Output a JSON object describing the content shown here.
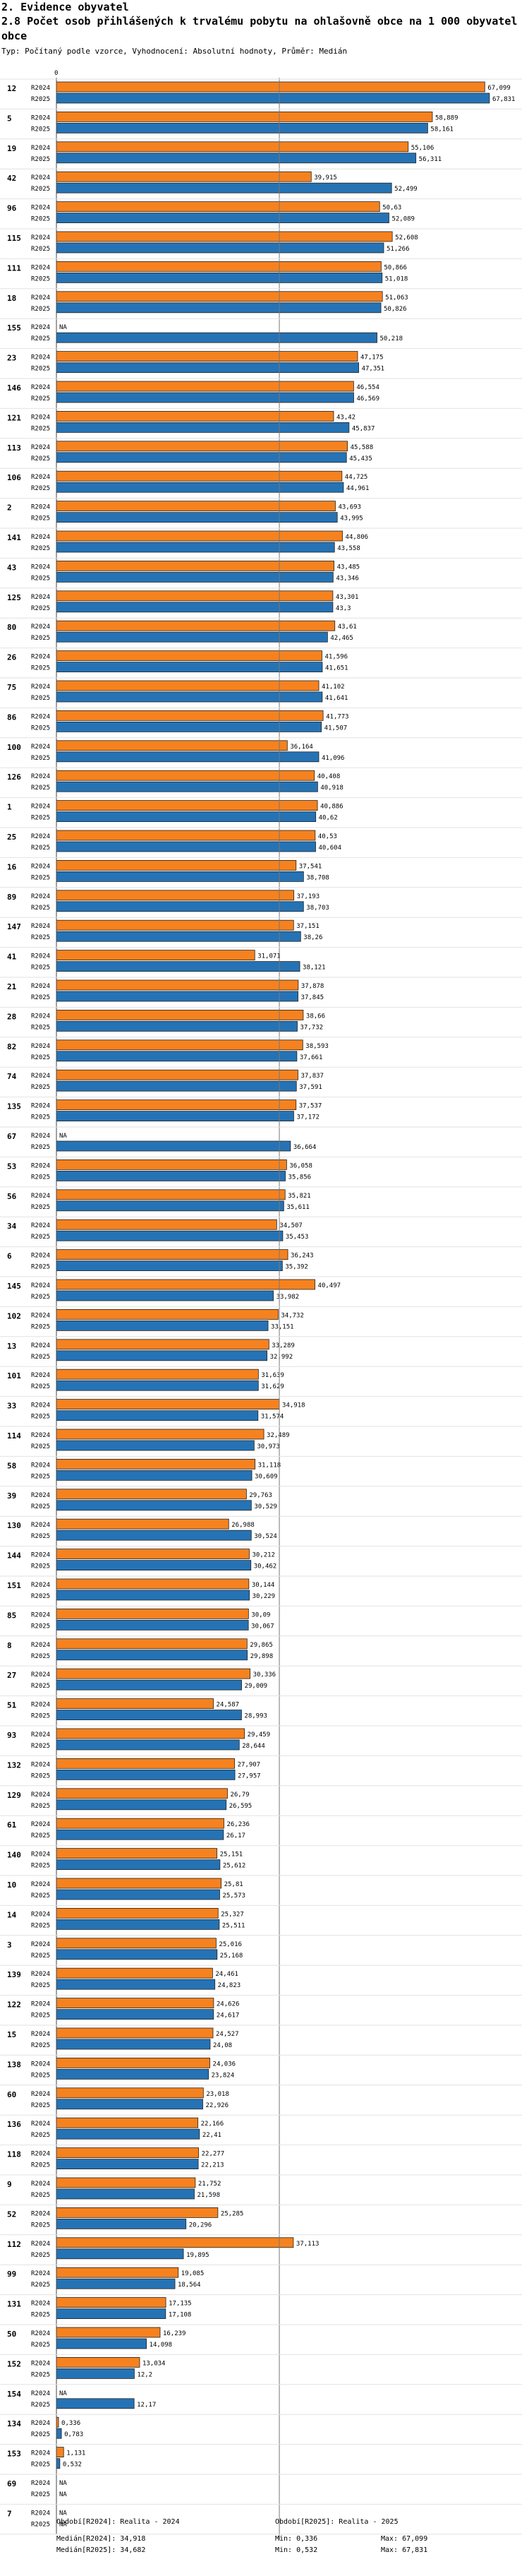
{
  "section_title": "2. Evidence obyvatel",
  "chart_title": "2.8 Počet osob přihlášených k trvalému pobytu na ohlašovně obce na 1 000 obyvatel obce",
  "parameters": "Typ: Počítaný podle vzorce, Vyhodnocení: Absolutní hodnoty, Průměr: Medián",
  "colors": {
    "r2024": "#F5821F",
    "r2025": "#2573B5"
  },
  "chart_data": {
    "type": "bar",
    "orientation": "horizontal",
    "axis_zero_label": "0",
    "xlim": [
      0,
      68.5
    ],
    "series_names": [
      "R2024",
      "R2025"
    ],
    "na_label": "NA",
    "median_values": [
      34.918,
      34.682
    ],
    "entries": [
      {
        "id": "12",
        "values": [
          67.099,
          67.831
        ],
        "labels": [
          "67,099",
          "67,831"
        ]
      },
      {
        "id": "5",
        "values": [
          58.889,
          58.161
        ],
        "labels": [
          "58,889",
          "58,161"
        ]
      },
      {
        "id": "19",
        "values": [
          55.106,
          56.311
        ],
        "labels": [
          "55,106",
          "56,311"
        ]
      },
      {
        "id": "42",
        "values": [
          39.915,
          52.499
        ],
        "labels": [
          "39,915",
          "52,499"
        ]
      },
      {
        "id": "96",
        "values": [
          50.63,
          52.089
        ],
        "labels": [
          "50,63",
          "52,089"
        ]
      },
      {
        "id": "115",
        "values": [
          52.608,
          51.266
        ],
        "labels": [
          "52,608",
          "51,266"
        ]
      },
      {
        "id": "111",
        "values": [
          50.866,
          51.018
        ],
        "labels": [
          "50,866",
          "51,018"
        ]
      },
      {
        "id": "18",
        "values": [
          51.063,
          50.826
        ],
        "labels": [
          "51,063",
          "50,826"
        ]
      },
      {
        "id": "155",
        "values": [
          null,
          50.218
        ],
        "labels": [
          "NA",
          "50,218"
        ]
      },
      {
        "id": "23",
        "values": [
          47.175,
          47.351
        ],
        "labels": [
          "47,175",
          "47,351"
        ]
      },
      {
        "id": "146",
        "values": [
          46.554,
          46.569
        ],
        "labels": [
          "46,554",
          "46,569"
        ]
      },
      {
        "id": "121",
        "values": [
          43.42,
          45.837
        ],
        "labels": [
          "43,42",
          "45,837"
        ]
      },
      {
        "id": "113",
        "values": [
          45.588,
          45.435
        ],
        "labels": [
          "45,588",
          "45,435"
        ]
      },
      {
        "id": "106",
        "values": [
          44.725,
          44.961
        ],
        "labels": [
          "44,725",
          "44,961"
        ]
      },
      {
        "id": "2",
        "values": [
          43.693,
          43.995
        ],
        "labels": [
          "43,693",
          "43,995"
        ]
      },
      {
        "id": "141",
        "values": [
          44.806,
          43.558
        ],
        "labels": [
          "44,806",
          "43,558"
        ]
      },
      {
        "id": "43",
        "values": [
          43.485,
          43.346
        ],
        "labels": [
          "43,485",
          "43,346"
        ]
      },
      {
        "id": "125",
        "values": [
          43.301,
          43.3
        ],
        "labels": [
          "43,301",
          "43,3"
        ]
      },
      {
        "id": "80",
        "values": [
          43.61,
          42.465
        ],
        "labels": [
          "43,61",
          "42,465"
        ]
      },
      {
        "id": "26",
        "values": [
          41.596,
          41.651
        ],
        "labels": [
          "41,596",
          "41,651"
        ]
      },
      {
        "id": "75",
        "values": [
          41.102,
          41.641
        ],
        "labels": [
          "41,102",
          "41,641"
        ]
      },
      {
        "id": "86",
        "values": [
          41.773,
          41.507
        ],
        "labels": [
          "41,773",
          "41,507"
        ]
      },
      {
        "id": "100",
        "values": [
          36.164,
          41.096
        ],
        "labels": [
          "36,164",
          "41,096"
        ]
      },
      {
        "id": "126",
        "values": [
          40.408,
          40.918
        ],
        "labels": [
          "40,408",
          "40,918"
        ]
      },
      {
        "id": "1",
        "values": [
          40.886,
          40.62
        ],
        "labels": [
          "40,886",
          "40,62"
        ]
      },
      {
        "id": "25",
        "values": [
          40.53,
          40.604
        ],
        "labels": [
          "40,53",
          "40,604"
        ]
      },
      {
        "id": "16",
        "values": [
          37.541,
          38.708
        ],
        "labels": [
          "37,541",
          "38,708"
        ]
      },
      {
        "id": "89",
        "values": [
          37.193,
          38.703
        ],
        "labels": [
          "37,193",
          "38,703"
        ]
      },
      {
        "id": "147",
        "values": [
          37.151,
          38.26
        ],
        "labels": [
          "37,151",
          "38,26"
        ]
      },
      {
        "id": "41",
        "values": [
          31.071,
          38.121
        ],
        "labels": [
          "31,071",
          "38,121"
        ]
      },
      {
        "id": "21",
        "values": [
          37.878,
          37.845
        ],
        "labels": [
          "37,878",
          "37,845"
        ]
      },
      {
        "id": "28",
        "values": [
          38.66,
          37.732
        ],
        "labels": [
          "38,66",
          "37,732"
        ]
      },
      {
        "id": "82",
        "values": [
          38.593,
          37.661
        ],
        "labels": [
          "38,593",
          "37,661"
        ]
      },
      {
        "id": "74",
        "values": [
          37.837,
          37.591
        ],
        "labels": [
          "37,837",
          "37,591"
        ]
      },
      {
        "id": "135",
        "values": [
          37.537,
          37.172
        ],
        "labels": [
          "37,537",
          "37,172"
        ]
      },
      {
        "id": "67",
        "values": [
          null,
          36.664
        ],
        "labels": [
          "NA",
          "36,664"
        ]
      },
      {
        "id": "53",
        "values": [
          36.058,
          35.856
        ],
        "labels": [
          "36,058",
          "35,856"
        ]
      },
      {
        "id": "56",
        "values": [
          35.821,
          35.611
        ],
        "labels": [
          "35,821",
          "35,611"
        ]
      },
      {
        "id": "34",
        "values": [
          34.507,
          35.453
        ],
        "labels": [
          "34,507",
          "35,453"
        ]
      },
      {
        "id": "6",
        "values": [
          36.243,
          35.392
        ],
        "labels": [
          "36,243",
          "35,392"
        ]
      },
      {
        "id": "145",
        "values": [
          40.497,
          33.982
        ],
        "labels": [
          "40,497",
          "33,982"
        ]
      },
      {
        "id": "102",
        "values": [
          34.732,
          33.151
        ],
        "labels": [
          "34,732",
          "33,151"
        ]
      },
      {
        "id": "13",
        "values": [
          33.289,
          32.992
        ],
        "labels": [
          "33,289",
          "32,992"
        ]
      },
      {
        "id": "101",
        "values": [
          31.639,
          31.629
        ],
        "labels": [
          "31,639",
          "31,629"
        ]
      },
      {
        "id": "33",
        "values": [
          34.918,
          31.574
        ],
        "labels": [
          "34,918",
          "31,574"
        ]
      },
      {
        "id": "114",
        "values": [
          32.489,
          30.973
        ],
        "labels": [
          "32,489",
          "30,973"
        ]
      },
      {
        "id": "58",
        "values": [
          31.118,
          30.609
        ],
        "labels": [
          "31,118",
          "30,609"
        ]
      },
      {
        "id": "39",
        "values": [
          29.763,
          30.529
        ],
        "labels": [
          "29,763",
          "30,529"
        ]
      },
      {
        "id": "130",
        "values": [
          26.988,
          30.524
        ],
        "labels": [
          "26,988",
          "30,524"
        ]
      },
      {
        "id": "144",
        "values": [
          30.212,
          30.462
        ],
        "labels": [
          "30,212",
          "30,462"
        ]
      },
      {
        "id": "151",
        "values": [
          30.144,
          30.229
        ],
        "labels": [
          "30,144",
          "30,229"
        ]
      },
      {
        "id": "85",
        "values": [
          30.09,
          30.067
        ],
        "labels": [
          "30,09",
          "30,067"
        ]
      },
      {
        "id": "8",
        "values": [
          29.865,
          29.898
        ],
        "labels": [
          "29,865",
          "29,898"
        ]
      },
      {
        "id": "27",
        "values": [
          30.336,
          29.009
        ],
        "labels": [
          "30,336",
          "29,009"
        ]
      },
      {
        "id": "51",
        "values": [
          24.587,
          28.993
        ],
        "labels": [
          "24,587",
          "28,993"
        ]
      },
      {
        "id": "93",
        "values": [
          29.459,
          28.644
        ],
        "labels": [
          "29,459",
          "28,644"
        ]
      },
      {
        "id": "132",
        "values": [
          27.907,
          27.957
        ],
        "labels": [
          "27,907",
          "27,957"
        ]
      },
      {
        "id": "129",
        "values": [
          26.79,
          26.595
        ],
        "labels": [
          "26,79",
          "26,595"
        ]
      },
      {
        "id": "61",
        "values": [
          26.236,
          26.17
        ],
        "labels": [
          "26,236",
          "26,17"
        ]
      },
      {
        "id": "140",
        "values": [
          25.151,
          25.612
        ],
        "labels": [
          "25,151",
          "25,612"
        ]
      },
      {
        "id": "10",
        "values": [
          25.81,
          25.573
        ],
        "labels": [
          "25,81",
          "25,573"
        ]
      },
      {
        "id": "14",
        "values": [
          25.327,
          25.511
        ],
        "labels": [
          "25,327",
          "25,511"
        ]
      },
      {
        "id": "3",
        "values": [
          25.016,
          25.168
        ],
        "labels": [
          "25,016",
          "25,168"
        ]
      },
      {
        "id": "139",
        "values": [
          24.461,
          24.823
        ],
        "labels": [
          "24,461",
          "24,823"
        ]
      },
      {
        "id": "122",
        "values": [
          24.626,
          24.617
        ],
        "labels": [
          "24,626",
          "24,617"
        ]
      },
      {
        "id": "15",
        "values": [
          24.527,
          24.08
        ],
        "labels": [
          "24,527",
          "24,08"
        ]
      },
      {
        "id": "138",
        "values": [
          24.036,
          23.824
        ],
        "labels": [
          "24,036",
          "23,824"
        ]
      },
      {
        "id": "60",
        "values": [
          23.018,
          22.926
        ],
        "labels": [
          "23,018",
          "22,926"
        ]
      },
      {
        "id": "136",
        "values": [
          22.166,
          22.41
        ],
        "labels": [
          "22,166",
          "22,41"
        ]
      },
      {
        "id": "118",
        "values": [
          22.277,
          22.213
        ],
        "labels": [
          "22,277",
          "22,213"
        ]
      },
      {
        "id": "9",
        "values": [
          21.752,
          21.598
        ],
        "labels": [
          "21,752",
          "21,598"
        ]
      },
      {
        "id": "52",
        "values": [
          25.285,
          20.296
        ],
        "labels": [
          "25,285",
          "20,296"
        ]
      },
      {
        "id": "112",
        "values": [
          37.113,
          19.895
        ],
        "labels": [
          "37,113",
          "19,895"
        ]
      },
      {
        "id": "99",
        "values": [
          19.085,
          18.564
        ],
        "labels": [
          "19,085",
          "18,564"
        ]
      },
      {
        "id": "131",
        "values": [
          17.135,
          17.108
        ],
        "labels": [
          "17,135",
          "17,108"
        ]
      },
      {
        "id": "50",
        "values": [
          16.239,
          14.098
        ],
        "labels": [
          "16,239",
          "14,098"
        ]
      },
      {
        "id": "152",
        "values": [
          13.034,
          12.2
        ],
        "labels": [
          "13,034",
          "12,2"
        ]
      },
      {
        "id": "154",
        "values": [
          null,
          12.17
        ],
        "labels": [
          "NA",
          "12,17"
        ]
      },
      {
        "id": "134",
        "values": [
          0.336,
          0.783
        ],
        "labels": [
          "0,336",
          "0,783"
        ]
      },
      {
        "id": "153",
        "values": [
          1.131,
          0.532
        ],
        "labels": [
          "1,131",
          "0,532"
        ]
      },
      {
        "id": "69",
        "values": [
          null,
          null
        ],
        "labels": [
          "NA",
          "NA"
        ]
      },
      {
        "id": "7",
        "values": [
          null,
          null
        ],
        "labels": [
          "NA",
          "NA"
        ]
      }
    ]
  },
  "footer": {
    "left": [
      "Období[R2024]: Realita - 2024",
      "Medián[R2024]: 34,918",
      "Medián[R2025]: 34,682"
    ],
    "right_title": "Období[R2025]: Realita - 2025",
    "min_2024": "Min: 0,336",
    "max_2024": "Max: 67,099",
    "min_2025": "Min: 0,532",
    "max_2025": "Max: 67,831"
  }
}
